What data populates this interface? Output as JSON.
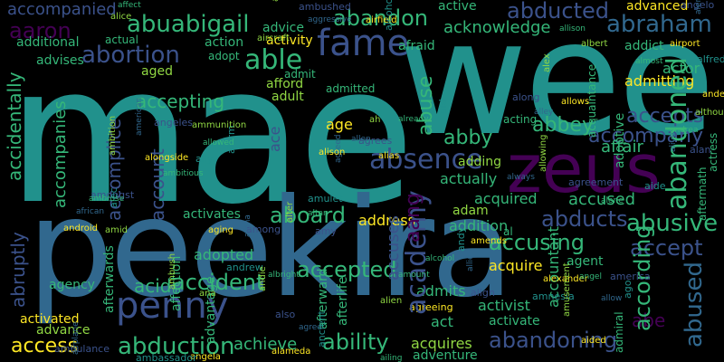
{
  "canvas": {
    "background": "#000000"
  },
  "palette": {
    "teal": "#21918c",
    "purple": "#440154",
    "indigo": "#3b528b",
    "blue": "#31688e",
    "green": "#35b779",
    "lime": "#90d743",
    "yellow": "#fde725"
  },
  "words": {
    "mae": "mae",
    "wee": "wee",
    "peekira": "peekira",
    "zeus": "zeus",
    "fame": "fame",
    "penny": "penny",
    "abortion": "abortion",
    "abduction": "abduction",
    "able": "able",
    "abuabigail": "abuabigail",
    "abandon": "abandon",
    "abducted": "abducted",
    "abraham": "abraham",
    "acknowledge": "acknowledge",
    "accompanied": "accompanied",
    "aaron": "aaron",
    "abandoned": "abandoned",
    "abandoning": "abandoning",
    "ability": "ability",
    "abusive": "abusive",
    "abused": "abused",
    "abducts": "abducts",
    "academy": "academy",
    "accepted": "accepted",
    "aboard": "aboard",
    "abbey": "abbey",
    "abby": "abby",
    "absence": "absence",
    "accept": "accept",
    "accepts": "accepts",
    "accompany": "accompany",
    "accusing": "accusing",
    "accused": "accused",
    "according": "according",
    "abe": "abe",
    "accident": "accident",
    "acid": "acid",
    "accepting": "accepting",
    "abuse": "abuse",
    "aang": "aang",
    "access": "access",
    "accomplice": "accomplice",
    "accompanies": "accompanies",
    "accidentally": "accidentally",
    "abruptly": "abruptly",
    "activated": "activated",
    "achieve": "achieve",
    "acquires": "acquires",
    "adventure": "adventure",
    "activity": "activity",
    "admit": "admit",
    "afford": "afford",
    "adult": "adult",
    "age": "age",
    "ace": "ace",
    "account": "account",
    "activates": "activates",
    "adopted": "adopted",
    "affection": "affection",
    "advantage": "advantage",
    "afterwards": "afterwards",
    "agency": "agency",
    "advance": "advance",
    "act": "act",
    "activist": "activist",
    "activate": "activate",
    "agent": "agent",
    "acquire": "acquire",
    "accuses": "accuses",
    "admits": "admits",
    "acquired": "acquired",
    "address": "address",
    "addition": "addition",
    "adam": "adam",
    "actually": "actually",
    "adding": "adding",
    "accountant": "accountant",
    "admitting": "admitting",
    "actor": "actor",
    "addict": "addict",
    "advanced": "advanced",
    "active": "active",
    "afraid": "afraid",
    "additional": "additional",
    "advises": "advises",
    "aged": "aged",
    "actual": "actual",
    "action": "action",
    "adopt": "adopt",
    "advice": "advice",
    "aircraft": "aircraft",
    "admitted": "admitted",
    "acting": "acting",
    "affair": "affair",
    "afterlife": "afterlife",
    "afterward": "afterward",
    "acquaintance": "acquaintance",
    "adoptive": "adoptive",
    "aftermath": "aftermath",
    "actress": "actress",
    "admiral": "admiral",
    "affect": "affect",
    "ahead": "ahead",
    "agreeing": "agreeing",
    "ambushed": "ambushed",
    "aggressive": "aggressive",
    "airfield": "airfield",
    "alcoholic": "alcoholic",
    "allison": "allison",
    "albert": "albert",
    "alice": "alice",
    "angelo": "angelo",
    "alerted": "alerted",
    "airport": "airport",
    "alfred": "alfred",
    "almost": "almost",
    "alex": "alex",
    "along": "along",
    "alley": "alley",
    "allows": "allows",
    "aid": "aid",
    "al": "al",
    "already": "already",
    "ah": "ah",
    "agrees": "agrees",
    "agreed": "agreed",
    "alison": "alison",
    "amulet": "amulet",
    "altar": "altar",
    "alter": "alter",
    "amy": "amy",
    "allen": "allen",
    "alias": "alias",
    "alarm": "alarm",
    "allowed": "allowed",
    "ammunition": "ammunition",
    "angeles": "angeles",
    "american": "american",
    "alongside": "alongside",
    "ally": "ally",
    "ambitious": "ambitious",
    "ambition": "ambition",
    "amongst": "amongst",
    "african": "african",
    "android": "android",
    "alec": "alec",
    "ambrose": "ambrose",
    "amid": "amid",
    "among": "among",
    "alpha": "alpha",
    "aging": "aging",
    "andrew": "andrew",
    "albright": "albright",
    "andie": "andie",
    "also": "also",
    "agree": "agree",
    "alameda": "alameda",
    "ancient": "ancient",
    "amount": "amount",
    "alien": "alien",
    "align": "align",
    "allie": "allie",
    "alexander": "alexander",
    "amnesia": "amnesia",
    "angel": "angel",
    "amusement": "amusement",
    "america": "america",
    "allow": "allow",
    "aided": "aided",
    "ago": "ago",
    "andrea": "andrea",
    "although": "although",
    "alan": "alan",
    "alive": "alive",
    "anderson": "anderson",
    "aide": "aide",
    "alone": "alone",
    "allowing": "allowing",
    "agreement": "agreement",
    "always": "always",
    "amends": "amends",
    "andy": "andy",
    "alcohol": "alcohol",
    "ana": "ana",
    "ambulance": "ambulance",
    "ambush": "ambush",
    "airplane": "airplane",
    "angela": "angela",
    "ambassador": "ambassador",
    "ailing": "ailing"
  }
}
